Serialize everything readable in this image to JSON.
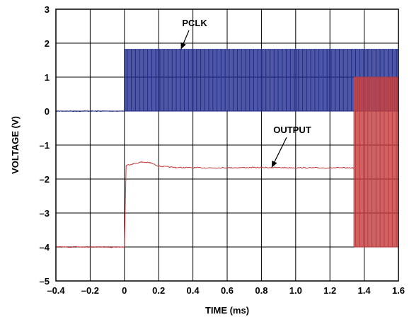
{
  "chart_data": {
    "type": "line",
    "title": "",
    "xlabel": "TIME (ms)",
    "ylabel": "VOLTAGE (V)",
    "xlim": [
      -0.4,
      1.6
    ],
    "ylim": [
      -5,
      3
    ],
    "grid": true,
    "x_ticks": [
      -0.4,
      -0.2,
      0,
      0.2,
      0.4,
      0.6,
      0.8,
      1.0,
      1.2,
      1.4,
      1.6
    ],
    "x_tick_labels": [
      "–0.4",
      "–0.2",
      "0",
      "0.2",
      "0.4",
      "0.6",
      "0.8",
      "1.0",
      "1.2",
      "1.4",
      "1.6"
    ],
    "y_ticks": [
      -5,
      -4,
      -3,
      -2,
      -1,
      0,
      1,
      2,
      3
    ],
    "y_tick_labels": [
      "–5",
      "–4",
      "–3",
      "–2",
      "–1",
      "0",
      "1",
      "2",
      "3"
    ],
    "series": [
      {
        "name": "PCLK",
        "color": "#1f2a8c",
        "segments": [
          {
            "kind": "flat",
            "x": [
              -0.4,
              0.0
            ],
            "y": 0.0
          },
          {
            "kind": "square_wave",
            "x": [
              0.0,
              1.6
            ],
            "low": 0.0,
            "high": 1.82,
            "period_ms": 0.01
          }
        ]
      },
      {
        "name": "OUTPUT",
        "color": "#c0393b",
        "segments": [
          {
            "kind": "flat",
            "x": [
              -0.4,
              0.0
            ],
            "y": -4.0
          },
          {
            "kind": "rise",
            "x": [
              0.0,
              0.01
            ],
            "y": [
              -4.0,
              -1.6
            ]
          },
          {
            "kind": "points",
            "x": [
              0.01,
              0.05,
              0.1,
              0.15,
              0.2,
              0.3,
              0.5,
              0.8,
              1.1,
              1.34
            ],
            "y": [
              -1.6,
              -1.55,
              -1.5,
              -1.52,
              -1.62,
              -1.66,
              -1.67,
              -1.66,
              -1.67,
              -1.67
            ]
          },
          {
            "kind": "square_wave",
            "x": [
              1.34,
              1.6
            ],
            "low": -4.0,
            "high": 1.0,
            "period_ms": 0.01
          }
        ]
      }
    ],
    "annotations": [
      {
        "text": "PCLK",
        "series": "PCLK",
        "text_at": [
          0.41,
          2.5
        ],
        "arrow_to": [
          0.33,
          1.82
        ]
      },
      {
        "text": "OUTPUT",
        "series": "OUTPUT",
        "text_at": [
          0.98,
          -0.65
        ],
        "arrow_to": [
          0.86,
          -1.66
        ]
      }
    ]
  }
}
